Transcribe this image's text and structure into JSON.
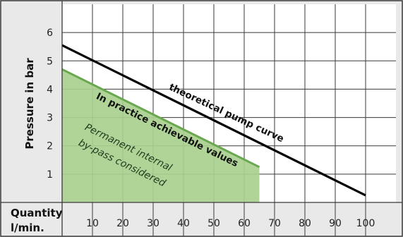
{
  "chart_data": {
    "type": "line",
    "ylabel": "Pressure in bar",
    "xlabel": "Quantity l/min.",
    "xlabel_lines": [
      "Quantity",
      "l/min."
    ],
    "xlim": [
      0,
      110
    ],
    "ylim": [
      0,
      7
    ],
    "xticks": [
      10,
      20,
      30,
      40,
      50,
      60,
      70,
      80,
      90,
      100
    ],
    "yticks": [
      1,
      2,
      3,
      4,
      5,
      6
    ],
    "grid": true,
    "series": [
      {
        "name": "theoretical pump curve",
        "x": [
          0,
          100
        ],
        "y": [
          5.55,
          0.25
        ]
      },
      {
        "name": "In practice achievable values",
        "x": [
          0,
          65
        ],
        "y": [
          4.7,
          1.25
        ]
      }
    ],
    "annotations": [
      "theoretical pump curve",
      "In practice achievable values",
      "Permanent internal",
      "by-pass considered"
    ],
    "colors": {
      "background": "#e9e9e9",
      "frame": "#3a3a3a",
      "grid": "#3a3a3a",
      "pump_curve": "#000000",
      "achievable_fill": "#a9d08e",
      "achievable_edge": "#6aa84f"
    }
  }
}
